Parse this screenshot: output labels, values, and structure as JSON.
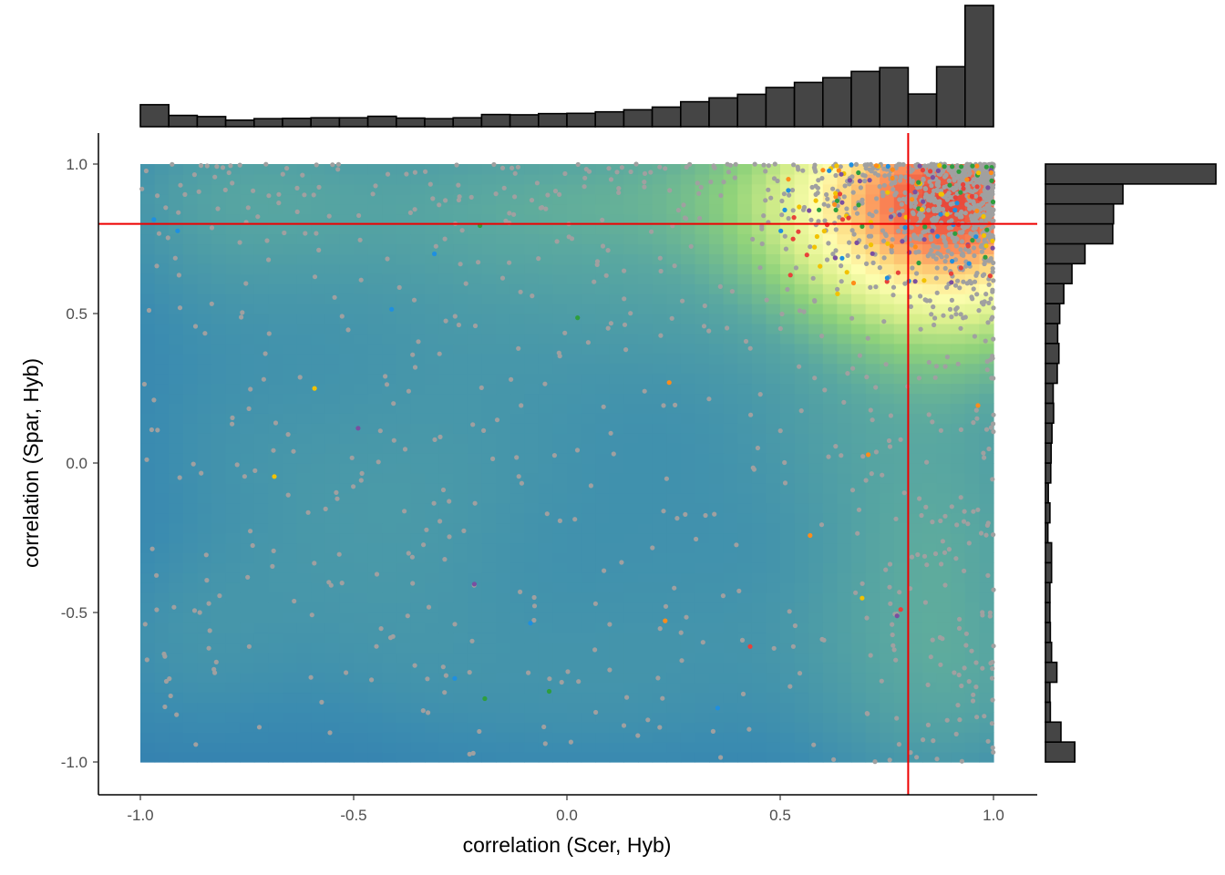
{
  "chart_data": {
    "type": "scatter",
    "subtype": "scatter over 2D density heatmap with marginal histograms",
    "xlabel": "correlation (Scer, Hyb)",
    "ylabel": "correlation (Spar, Hyb)",
    "xlim": [
      -1.0,
      1.0
    ],
    "ylim": [
      -1.0,
      1.0
    ],
    "x_ticks": [
      "-1.0",
      "-0.5",
      "0.0",
      "0.5",
      "1.0"
    ],
    "y_ticks": [
      "-1.0",
      "-0.5",
      "0.0",
      "0.5",
      "1.0"
    ],
    "grid": false,
    "legend": "none",
    "reference_lines": {
      "vertical_x": 0.8,
      "horizontal_y": 0.8,
      "color": "#ee0000"
    },
    "density_palette": [
      "#2c74b0",
      "#3b8cb0",
      "#5aa8a0",
      "#8fd27a",
      "#d9ef8b",
      "#fefeb0",
      "#fdd57a",
      "#fc8d59",
      "#e8483a"
    ],
    "colors": {
      "gray_points": "#a0a0a0",
      "hist_fill": "#454545",
      "hist_edge": "#000000"
    },
    "highlight_colors": [
      "#e8413a",
      "#1f8fe0",
      "#2e9e3e",
      "#f2c200",
      "#7a4fa0",
      "#ff8c1a"
    ],
    "marginal_x_histogram": {
      "bin_edges_start": -1.0,
      "bin_width": 0.0694,
      "counts": [
        74,
        38,
        34,
        22,
        27,
        28,
        30,
        30,
        35,
        29,
        27,
        30,
        41,
        40,
        44,
        45,
        50,
        57,
        66,
        84,
        97,
        109,
        132,
        149,
        165,
        186,
        199,
        110,
        202,
        408
      ]
    },
    "marginal_y_histogram": {
      "bin_edges_start": -1.0,
      "bin_width": 0.0694,
      "counts": [
        72,
        38,
        12,
        11,
        28,
        15,
        12,
        11,
        11,
        15,
        15,
        6,
        11,
        7,
        13,
        14,
        16,
        20,
        19,
        29,
        33,
        30,
        35,
        45,
        65,
        97,
        165,
        167,
        190,
        418
      ]
    }
  }
}
